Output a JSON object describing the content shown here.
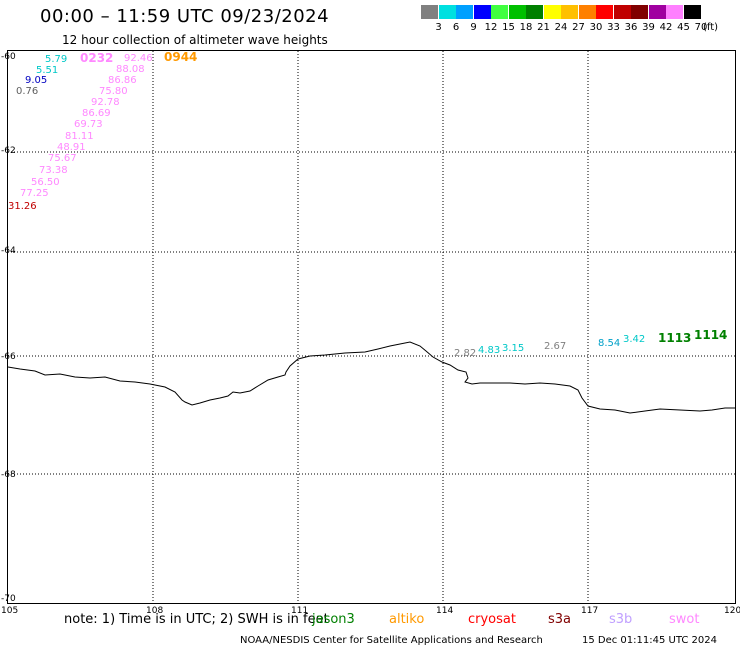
{
  "title": "00:00 – 11:59 UTC 09/23/2024",
  "subtitle": "12 hour collection of altimeter wave heights",
  "scale": {
    "labels": [
      "3",
      "6",
      "9",
      "12",
      "15",
      "18",
      "21",
      "24",
      "27",
      "30",
      "33",
      "36",
      "39",
      "42",
      "45",
      "70"
    ],
    "unit": "(ft)",
    "colors": [
      "#808080",
      "#00e0e0",
      "#00a0ff",
      "#0000ff",
      "#40ff40",
      "#00c000",
      "#008000",
      "#ffff00",
      "#ffc000",
      "#ff8000",
      "#ff0000",
      "#c00000",
      "#800000",
      "#a000a0",
      "#ff80ff",
      "#000000"
    ]
  },
  "axes": {
    "y_labels": [
      "-60",
      "-62",
      "-64",
      "-66",
      "-68",
      "-70"
    ],
    "x_labels": [
      "105",
      "108",
      "111",
      "114",
      "117",
      "120"
    ]
  },
  "labels": [
    {
      "text": "5.79",
      "color": "#00c8c8"
    },
    {
      "text": "0232",
      "color": "#ff88ff"
    },
    {
      "text": "92.46",
      "color": "#ff88ff"
    },
    {
      "text": "0944",
      "color": "#ff9900"
    },
    {
      "text": "5.51",
      "color": "#00c8c8"
    },
    {
      "text": "88.08",
      "color": "#ff88ff"
    },
    {
      "text": "9.05",
      "color": "#0000c0"
    },
    {
      "text": "86.86",
      "color": "#ff88ff"
    },
    {
      "text": "0.76",
      "color": "#606060"
    },
    {
      "text": "75.80",
      "color": "#ff88ff"
    },
    {
      "text": "92.78",
      "color": "#ff88ff"
    },
    {
      "text": "86.69",
      "color": "#ff88ff"
    },
    {
      "text": "69.73",
      "color": "#ff88ff"
    },
    {
      "text": "81.11",
      "color": "#ff88ff"
    },
    {
      "text": "48.91",
      "color": "#ff88ff"
    },
    {
      "text": "75.67",
      "color": "#ff88ff"
    },
    {
      "text": "73.38",
      "color": "#ff88ff"
    },
    {
      "text": "56.50",
      "color": "#ff88ff"
    },
    {
      "text": "77.25",
      "color": "#ff88ff"
    },
    {
      "text": "31.26",
      "color": "#c00000"
    },
    {
      "text": "2.82",
      "color": "#808080"
    },
    {
      "text": "4.83",
      "color": "#00c8c8"
    },
    {
      "text": "3.15",
      "color": "#00c8c8"
    },
    {
      "text": "2.67",
      "color": "#808080"
    },
    {
      "text": "8.54",
      "color": "#00a0c8"
    },
    {
      "text": "3.42",
      "color": "#00c8c8"
    },
    {
      "text": "1113",
      "color": "#008000"
    },
    {
      "text": "1114",
      "color": "#008000"
    }
  ],
  "note": "note: 1) Time is in UTC; 2) SWH is in feet",
  "legend": [
    {
      "text": "jason3",
      "color": "#008000"
    },
    {
      "text": "altiko",
      "color": "#ff9900"
    },
    {
      "text": "cryosat",
      "color": "#ff0000"
    },
    {
      "text": "s3a",
      "color": "#800000"
    },
    {
      "text": "s3b",
      "color": "#c0a0ff"
    },
    {
      "text": "swot",
      "color": "#ff88ff"
    }
  ],
  "credit": "NOAA/NESDIS Center for Satellite Applications and Research",
  "timestamp": "15 Dec 01:11:45 UTC 2024"
}
